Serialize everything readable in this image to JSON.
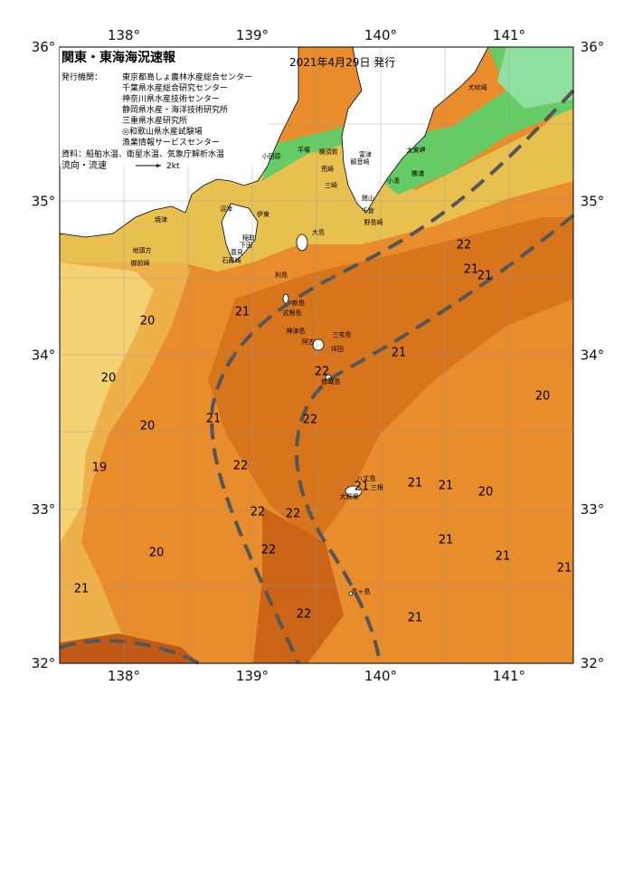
{
  "header": {
    "title": "関東・東海海況速報",
    "issued": "2021年4月29日 発行",
    "publisher_label": "発行機関：",
    "publishers": [
      "東京都島しょ農林水産総合センター",
      "千葉県水産総合研究センター",
      "神奈川県水産技術センター",
      "静岡県水産・海洋技術研究所",
      "三重県水産研究所",
      "◎和歌山県水産試験場",
      "漁業情報サービスセンター"
    ],
    "source": "資料：船舶水温、衛星水温、気象庁解析水温",
    "current_legend": "流向・流速",
    "current_speed": "2kt"
  },
  "map": {
    "lon_labels": [
      {
        "value": 138,
        "label": "138°"
      },
      {
        "value": 139,
        "label": "139°"
      },
      {
        "value": 140,
        "label": "140°"
      },
      {
        "value": 141,
        "label": "141°"
      }
    ],
    "lat_labels": [
      {
        "value": 36,
        "label": "36°"
      },
      {
        "value": 35,
        "label": "35°"
      },
      {
        "value": 34,
        "label": "34°"
      },
      {
        "value": 33,
        "label": "33°"
      },
      {
        "value": 32,
        "label": "32°"
      }
    ],
    "place_names": [
      "犬吠埼",
      "太東岬",
      "勝浦",
      "小湊",
      "横須賀",
      "富津",
      "観音崎",
      "平塚",
      "小田原",
      "荒崎",
      "三崎",
      "館山",
      "千倉",
      "野島崎",
      "大島",
      "沼津",
      "伊東",
      "稲取",
      "下田",
      "焼津",
      "蓑見",
      "石廊崎",
      "地頭方",
      "御前崎",
      "利島",
      "新島",
      "式根島",
      "神津島",
      "三宅島",
      "阿古",
      "坪田",
      "御蔵島",
      "八丈島",
      "三根",
      "大賀郷",
      "青ヶ島"
    ],
    "temperature_labels": [
      "22",
      "21",
      "21",
      "21",
      "20",
      "21",
      "22",
      "20",
      "20",
      "21",
      "22",
      "20",
      "19",
      "22",
      "21",
      "21",
      "21",
      "20",
      "22",
      "22",
      "21",
      "22",
      "20",
      "21",
      "21",
      "21",
      "22",
      "21"
    ]
  }
}
